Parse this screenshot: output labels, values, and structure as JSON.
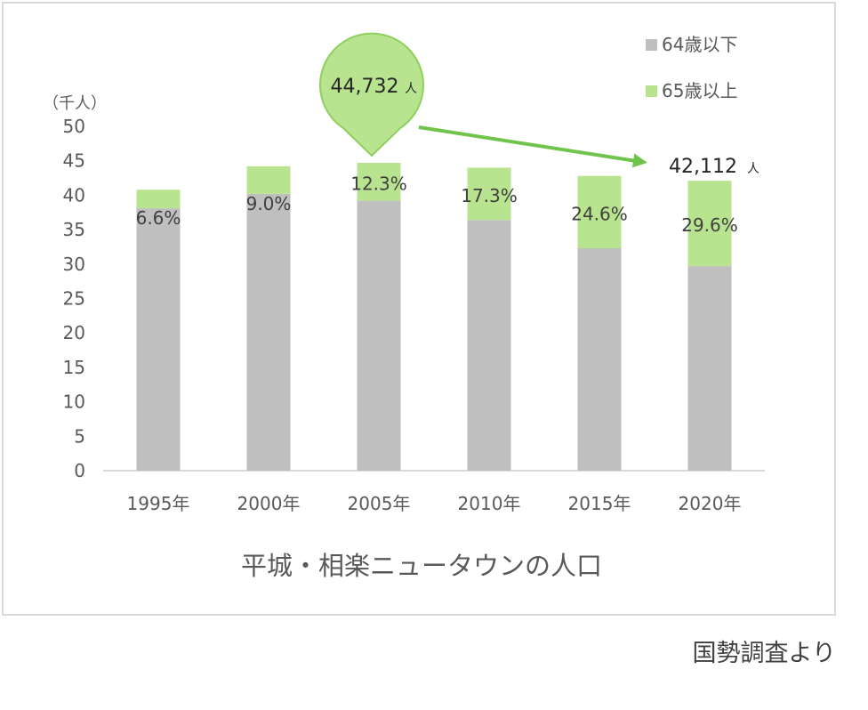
{
  "chart_data": {
    "type": "bar",
    "stacked": true,
    "title": "平城・相楽ニュータウンの人口",
    "ylabel": "（千人）",
    "xlabel": "",
    "ylim": [
      0,
      50
    ],
    "yticks": [
      0,
      5,
      10,
      15,
      20,
      25,
      30,
      35,
      40,
      45,
      50
    ],
    "grid": false,
    "legend_position": "top-right",
    "categories": [
      "1995年",
      "2000年",
      "2005年",
      "2010年",
      "2015年",
      "2020年"
    ],
    "series": [
      {
        "name": "64歳以下",
        "color": "#bfbfbf",
        "values": [
          38.1,
          40.2,
          39.2,
          36.4,
          32.3,
          29.7
        ]
      },
      {
        "name": "65歳以上",
        "color": "#b8e38f",
        "values": [
          2.7,
          4.0,
          5.5,
          7.6,
          10.5,
          12.4
        ]
      }
    ],
    "data_labels": [
      "6.6%",
      "9.0%",
      "12.3%",
      "17.3%",
      "24.6%",
      "29.6%"
    ],
    "annotations": {
      "peak": {
        "value": "44,732",
        "unit": "人",
        "category_index": 2
      },
      "latest": {
        "value": "42,112",
        "unit": "人",
        "category_index": 5
      },
      "arrow_color": "#70c44b",
      "bubble_color": "#b8e38f",
      "bubble_border": "#8fcf5e"
    }
  },
  "source": "国勢調査より"
}
